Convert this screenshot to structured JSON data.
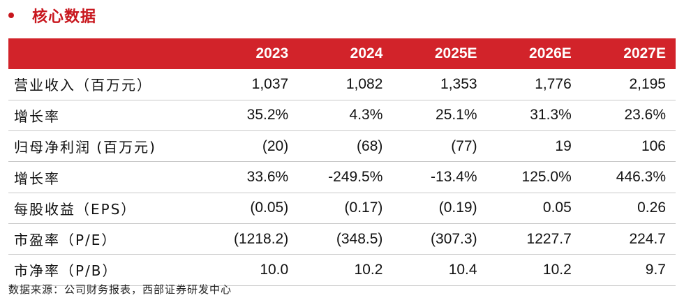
{
  "section": {
    "title": "核心数据"
  },
  "table": {
    "columns": [
      "2023",
      "2024",
      "2025E",
      "2026E",
      "2027E"
    ],
    "rows": [
      {
        "label": "营业收入（百万元）",
        "values": [
          "1,037",
          "1,082",
          "1,353",
          "1,776",
          "2,195"
        ]
      },
      {
        "label": "增长率",
        "values": [
          "35.2%",
          "4.3%",
          "25.1%",
          "31.3%",
          "23.6%"
        ]
      },
      {
        "label": "归母净利润 (百万元)",
        "values": [
          "(20)",
          "(68)",
          "(77)",
          "19",
          "106"
        ]
      },
      {
        "label": "增长率",
        "values": [
          "33.6%",
          "-249.5%",
          "-13.4%",
          "125.0%",
          "446.3%"
        ]
      },
      {
        "label": "每股收益（EPS）",
        "values": [
          "(0.05)",
          "(0.17)",
          "(0.19)",
          "0.05",
          "0.26"
        ]
      },
      {
        "label": "市盈率（P/E）",
        "values": [
          "(1218.2)",
          "(348.5)",
          "(307.3)",
          "1227.7",
          "224.7"
        ]
      },
      {
        "label": "市净率（P/B）",
        "values": [
          "10.0",
          "10.2",
          "10.4",
          "10.2",
          "9.7"
        ]
      }
    ]
  },
  "source": "数据来源：公司财务报表，西部证券研发中心",
  "colors": {
    "accent": "#d2232a",
    "title": "#c8161d"
  }
}
